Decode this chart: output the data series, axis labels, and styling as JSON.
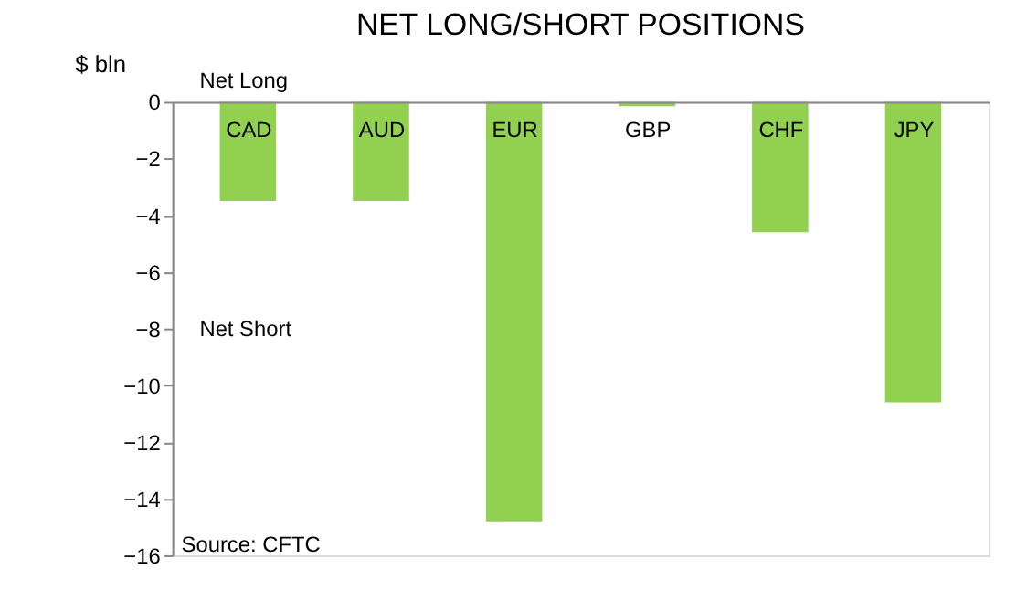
{
  "chart_data": {
    "type": "bar",
    "title": "NET LONG/SHORT POSITIONS",
    "ylabel": "$ bln",
    "categories": [
      "CAD",
      "AUD",
      "EUR",
      "GBP",
      "CHF",
      "JPY"
    ],
    "values": [
      -3.5,
      -3.5,
      -14.8,
      -0.15,
      -4.6,
      -10.6
    ],
    "color": "#92d050",
    "ylim": [
      -16,
      0
    ],
    "yticks": [
      -16,
      -14,
      -12,
      -10,
      -8,
      -6,
      -4,
      -2,
      0
    ],
    "grid": false,
    "annotations": [
      "Net Long",
      "Net Short",
      "Source: CFTC"
    ]
  }
}
